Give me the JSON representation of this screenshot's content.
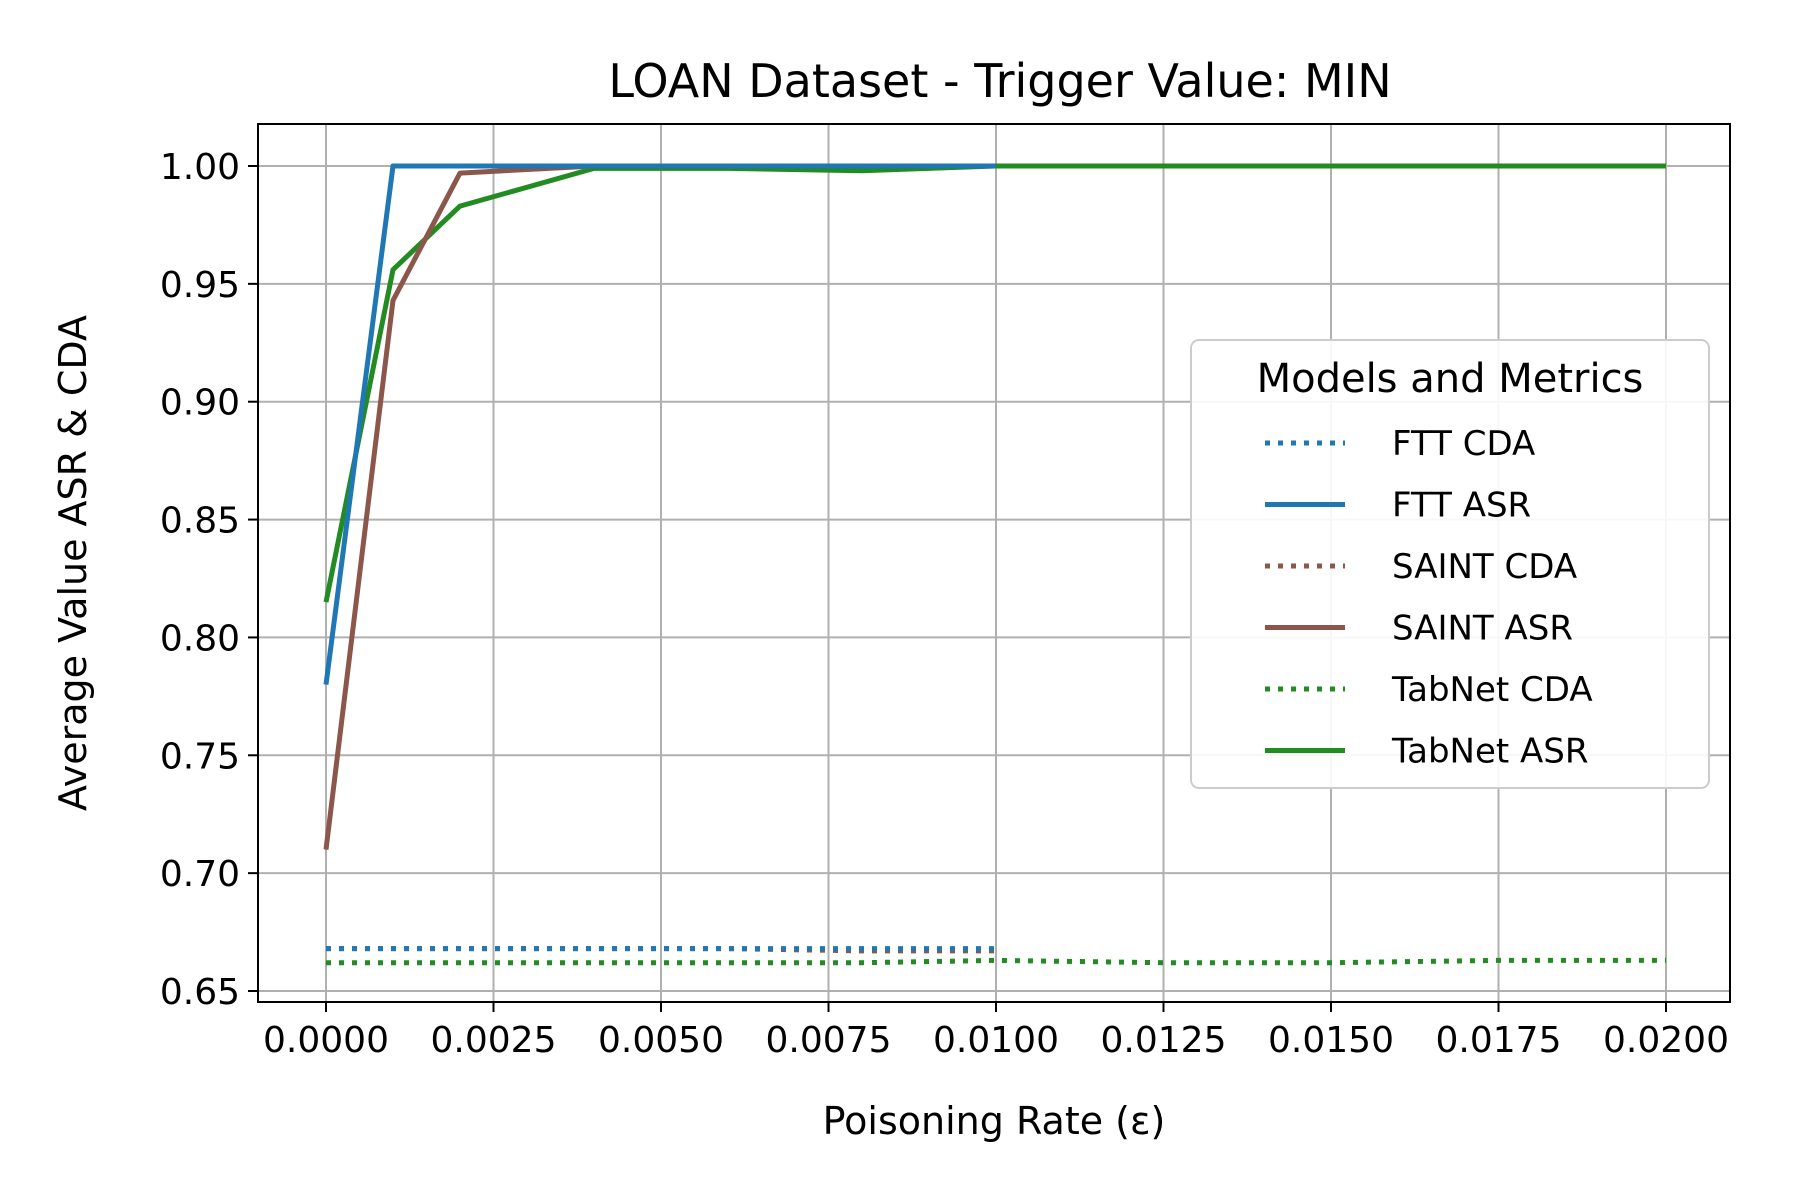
{
  "chart_data": {
    "type": "line",
    "title": "LOAN Dataset - Trigger Value: MIN",
    "xlabel": "Poisoning Rate (ε)",
    "ylabel": "Average Value ASR & CDA",
    "xlim": [
      -0.001,
      0.021
    ],
    "ylim": [
      0.648,
      1.018
    ],
    "xticks": [
      0.0,
      0.0025,
      0.005,
      0.0075,
      0.01,
      0.0125,
      0.015,
      0.0175,
      0.02
    ],
    "xtick_labels": [
      "0.0000",
      "0.0025",
      "0.0050",
      "0.0075",
      "0.0100",
      "0.0125",
      "0.0150",
      "0.0175",
      "0.0200"
    ],
    "yticks": [
      0.65,
      0.7,
      0.75,
      0.8,
      0.85,
      0.9,
      0.95,
      1.0
    ],
    "ytick_labels": [
      "0.65",
      "0.70",
      "0.75",
      "0.80",
      "0.85",
      "0.90",
      "0.95",
      "1.00"
    ],
    "grid": true,
    "legend_title": "Models and Metrics",
    "legend_position": "center-right",
    "series": [
      {
        "name": "FTT CDA",
        "style": "dotted",
        "color": "#1f77b4",
        "x": [
          0.0,
          0.001,
          0.002,
          0.004,
          0.006,
          0.008,
          0.01
        ],
        "y": [
          0.668,
          0.668,
          0.668,
          0.668,
          0.668,
          0.668,
          0.668
        ]
      },
      {
        "name": "FTT ASR",
        "style": "solid",
        "color": "#1f77b4",
        "x": [
          0.0,
          0.001,
          0.002,
          0.004,
          0.006,
          0.008,
          0.01
        ],
        "y": [
          0.78,
          1.0,
          1.0,
          1.0,
          1.0,
          1.0,
          1.0
        ]
      },
      {
        "name": "SAINT CDA",
        "style": "dotted",
        "color": "#8c564b",
        "x": [
          0.0,
          0.001,
          0.002,
          0.004,
          0.006,
          0.008,
          0.01
        ],
        "y": [
          0.668,
          0.668,
          0.668,
          0.668,
          0.668,
          0.667,
          0.667
        ]
      },
      {
        "name": "SAINT ASR",
        "style": "solid",
        "color": "#8c564b",
        "x": [
          0.0,
          0.001,
          0.002,
          0.004,
          0.006,
          0.008,
          0.01
        ],
        "y": [
          0.71,
          0.943,
          0.997,
          1.0,
          1.0,
          1.0,
          1.0
        ]
      },
      {
        "name": "TabNet CDA",
        "style": "dotted",
        "color": "#228b22",
        "x": [
          0.0,
          0.001,
          0.002,
          0.004,
          0.006,
          0.008,
          0.01,
          0.0125,
          0.015,
          0.0175,
          0.02
        ],
        "y": [
          0.662,
          0.662,
          0.662,
          0.662,
          0.662,
          0.662,
          0.663,
          0.662,
          0.662,
          0.663,
          0.663
        ]
      },
      {
        "name": "TabNet ASR",
        "style": "solid",
        "color": "#228b22",
        "x": [
          0.0,
          0.001,
          0.002,
          0.004,
          0.006,
          0.008,
          0.01,
          0.0125,
          0.015,
          0.0175,
          0.02
        ],
        "y": [
          0.815,
          0.956,
          0.983,
          0.999,
          0.999,
          0.998,
          1.0,
          1.0,
          1.0,
          1.0,
          1.0
        ]
      }
    ]
  }
}
